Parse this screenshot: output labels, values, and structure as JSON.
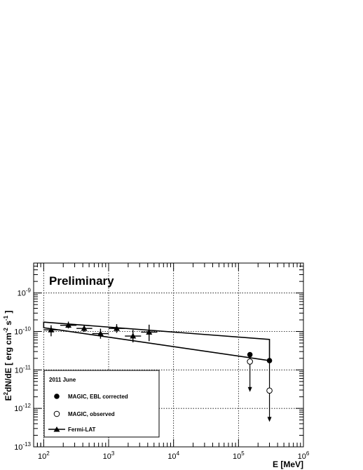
{
  "chart_data": {
    "type": "scatter",
    "title": "",
    "annotation": "Preliminary",
    "xlabel": "E [MeV]",
    "ylabel": "E^2 dN/dE [ erg cm^-2 s^-1 ]",
    "xscale": "log",
    "yscale": "log",
    "xlim": [
      70,
      1000000
    ],
    "ylim": [
      1e-13,
      6e-09
    ],
    "grid": true,
    "x_ticks": [
      {
        "value": 100,
        "base": "10",
        "exp": "2"
      },
      {
        "value": 1000,
        "base": "10",
        "exp": "3"
      },
      {
        "value": 10000,
        "base": "10",
        "exp": "4"
      },
      {
        "value": 100000,
        "base": "10",
        "exp": "5"
      },
      {
        "value": 1000000,
        "base": "10",
        "exp": "6"
      }
    ],
    "y_ticks": [
      {
        "value": 1e-13,
        "base": "10",
        "exp": "-13"
      },
      {
        "value": 1e-12,
        "base": "10",
        "exp": "-12"
      },
      {
        "value": 1e-11,
        "base": "10",
        "exp": "-11"
      },
      {
        "value": 1e-10,
        "base": "10",
        "exp": "-10"
      },
      {
        "value": 1e-09,
        "base": "10",
        "exp": "-9"
      }
    ],
    "legend": {
      "placement": "bottom-left",
      "header": "2011 June",
      "entries": [
        {
          "label": "MAGIC, EBL corrected",
          "marker": "filled-circle"
        },
        {
          "label": "MAGIC, observed",
          "marker": "open-circle"
        },
        {
          "label": "Fermi-LAT",
          "marker": "filled-triangle"
        }
      ]
    },
    "series": [
      {
        "name": "Fermi-LAT",
        "marker": "filled-triangle",
        "points": [
          {
            "x": 130,
            "y": 1.1e-10,
            "xlo": 100,
            "xhi": 180,
            "ylo": 7.5e-11,
            "yhi": 1.45e-10
          },
          {
            "x": 240,
            "y": 1.45e-10,
            "xlo": 180,
            "xhi": 320,
            "ylo": 1.2e-10,
            "yhi": 1.8e-10
          },
          {
            "x": 420,
            "y": 1.2e-10,
            "xlo": 320,
            "xhi": 560,
            "ylo": 9.8e-11,
            "yhi": 1.48e-10
          },
          {
            "x": 750,
            "y": 8.8e-11,
            "xlo": 560,
            "xhi": 1000,
            "ylo": 6.5e-11,
            "yhi": 1.18e-10
          },
          {
            "x": 1330,
            "y": 1.2e-10,
            "xlo": 1000,
            "xhi": 1780,
            "ylo": 9.2e-11,
            "yhi": 1.55e-10
          },
          {
            "x": 2370,
            "y": 7.6e-11,
            "xlo": 1780,
            "xhi": 3160,
            "ylo": 5.2e-11,
            "yhi": 1.1e-10
          },
          {
            "x": 4200,
            "y": 9.6e-11,
            "xlo": 3160,
            "xhi": 5620,
            "ylo": 5.6e-11,
            "yhi": 1.5e-10
          }
        ]
      },
      {
        "name": "MAGIC, EBL corrected",
        "marker": "filled-circle",
        "points": [
          {
            "x": 150000,
            "y": 2.5e-11,
            "upper_limit_to": 3.3e-12
          },
          {
            "x": 300000,
            "y": 1.75e-11,
            "upper_limit_to": 5.5e-13
          }
        ]
      },
      {
        "name": "MAGIC, observed",
        "marker": "open-circle",
        "points": [
          {
            "x": 150000,
            "y": 1.65e-11
          },
          {
            "x": 300000,
            "y": 2.9e-12
          }
        ]
      }
    ],
    "fermi_bowtie": {
      "x0": 100,
      "x1": 300000,
      "upper": [
        1.75e-10,
        6.2e-11
      ],
      "lower": [
        1.25e-10,
        1.75e-11
      ]
    }
  }
}
